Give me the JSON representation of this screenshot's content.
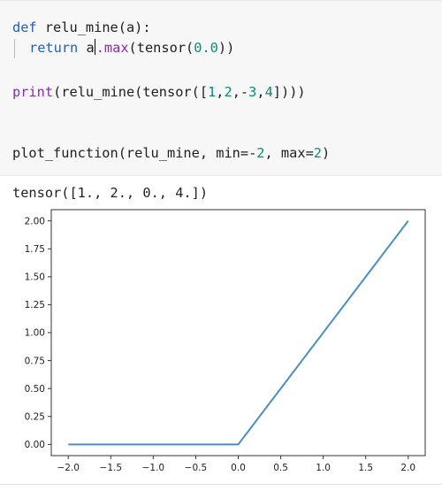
{
  "code_cell": {
    "line1": {
      "kw": "def",
      "name": " relu_mine",
      "params": "(a):"
    },
    "line2": {
      "kw": "return",
      "obj": "a",
      "method": ".max",
      "open": "(",
      "call": "tensor",
      "open2": "(",
      "num": "0.0",
      "close": "))"
    },
    "line3": {
      "fn": "print",
      "rest_a": "(relu_mine(tensor([",
      "n1": "1",
      "c1": ",",
      "n2": "2",
      "c2": ",-",
      "n3": "3",
      "c3": ",",
      "n4": "4",
      "rest_b": "])))"
    },
    "line4": {
      "fn": "plot_function(relu_mine, min=-",
      "n1": "2",
      "mid": ", max=",
      "n2": "2",
      "end": ")"
    }
  },
  "output": {
    "tensor_text": "tensor([1., 2., 0., 4.])"
  },
  "chart_data": {
    "type": "line",
    "title": "",
    "xlabel": "",
    "ylabel": "",
    "x": [
      -2.0,
      0.0,
      2.0
    ],
    "y": [
      0.0,
      0.0,
      2.0
    ],
    "xlim": [
      -2.2,
      2.2
    ],
    "ylim": [
      -0.1,
      2.1
    ],
    "xticks": [
      -2.0,
      -1.5,
      -1.0,
      -0.5,
      0.0,
      0.5,
      1.0,
      1.5,
      2.0
    ],
    "xtick_labels": [
      "−2.0",
      "−1.5",
      "−1.0",
      "−0.5",
      "0.0",
      "0.5",
      "1.0",
      "1.5",
      "2.0"
    ],
    "yticks": [
      0.0,
      0.25,
      0.5,
      0.75,
      1.0,
      1.25,
      1.5,
      1.75,
      2.0
    ],
    "ytick_labels": [
      "0.00",
      "0.25",
      "0.50",
      "0.75",
      "1.00",
      "1.25",
      "1.50",
      "1.75",
      "2.00"
    ],
    "grid": false,
    "line_color": "#4a8fc4"
  }
}
